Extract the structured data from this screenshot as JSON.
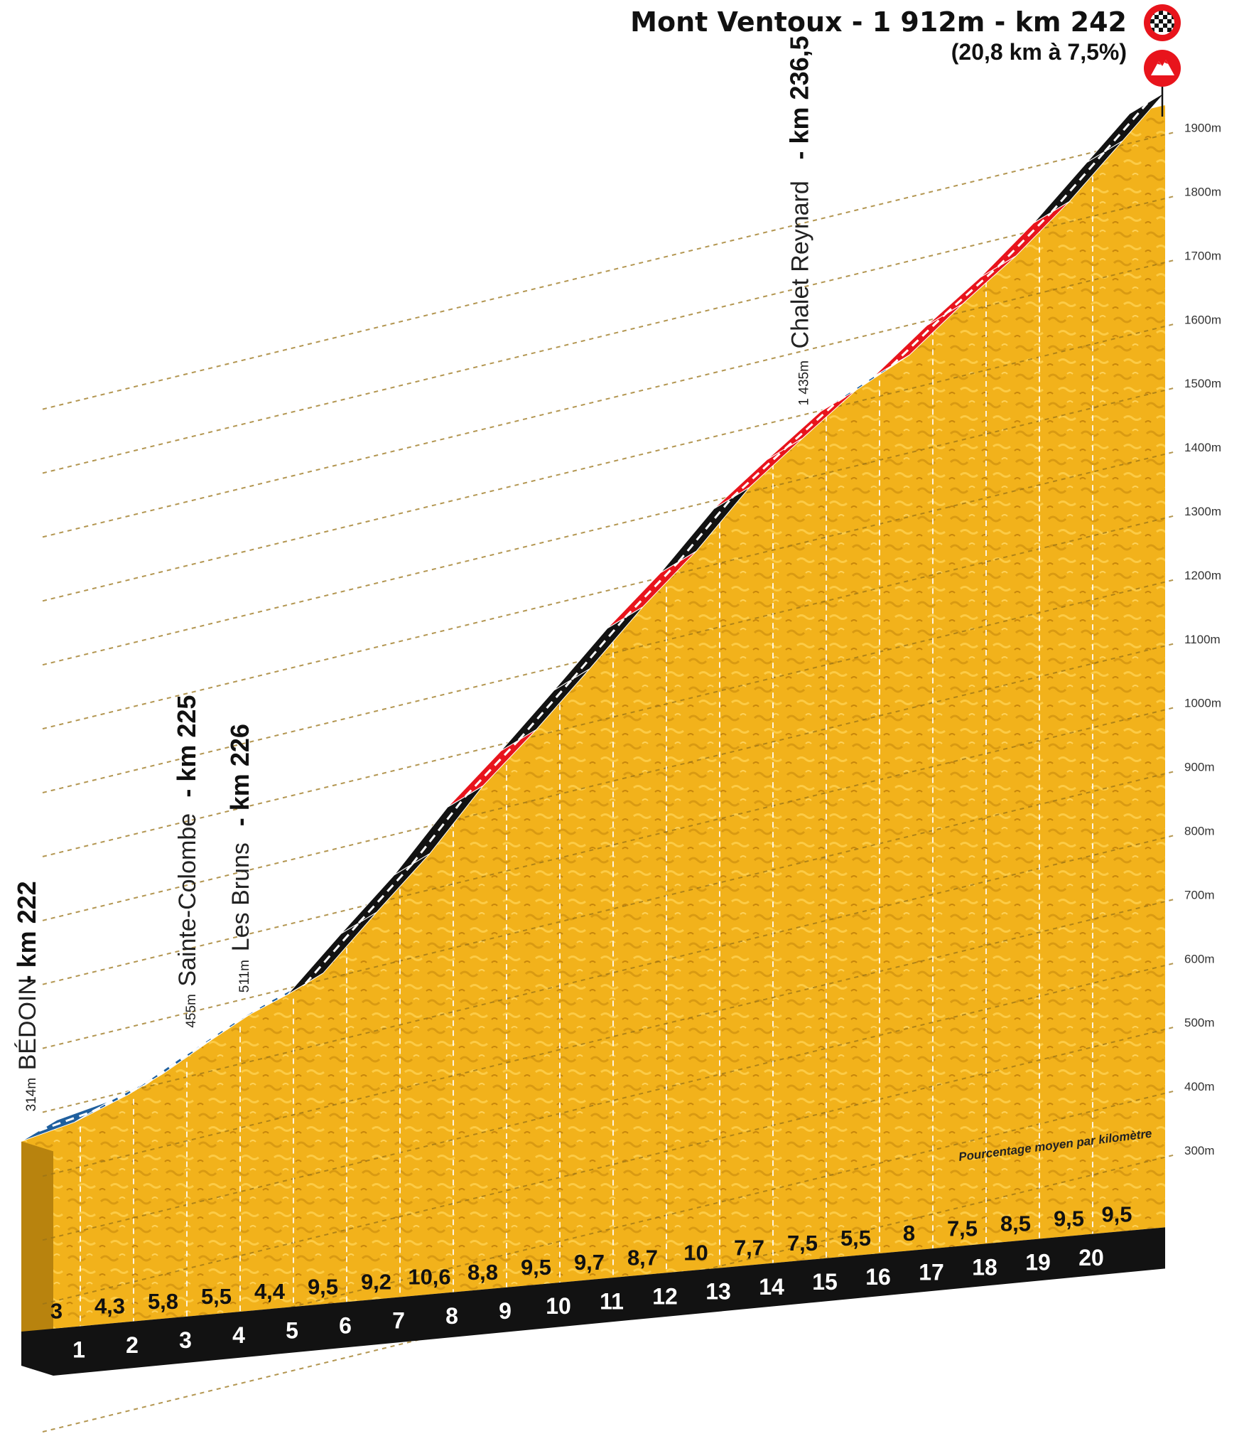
{
  "chart_data": {
    "type": "area",
    "title": "Mont Ventoux - 1 912m - km 242",
    "subtitle": "(20,8 km à 7,5%)",
    "legend_label": "Pourcentage moyen par kilomètre",
    "y_unit": "m",
    "ylim": [
      140,
      1930
    ],
    "y_ticks": [
      "300m",
      "400m",
      "500m",
      "600m",
      "700m",
      "800m",
      "900m",
      "1000m",
      "1100m",
      "1200m",
      "1300m",
      "1400m",
      "1500m",
      "1600m",
      "1700m",
      "1800m",
      "1900m"
    ],
    "x_km_labels": [
      "1",
      "2",
      "3",
      "4",
      "5",
      "6",
      "7",
      "8",
      "9",
      "10",
      "11",
      "12",
      "13",
      "14",
      "15",
      "16",
      "17",
      "18",
      "19",
      "20"
    ],
    "gradients": [
      "3",
      "4,3",
      "5,8",
      "5,5",
      "4,4",
      "9,5",
      "9,2",
      "10,6",
      "8,8",
      "9,5",
      "9,7",
      "8,7",
      "10",
      "7,7",
      "7,5",
      "5,5",
      "8",
      "7,5",
      "8,5",
      "9,5",
      "9,5"
    ],
    "gradient_values": [
      3,
      4.3,
      5.8,
      5.5,
      4.4,
      9.5,
      9.2,
      10.6,
      8.8,
      9.5,
      9.7,
      8.7,
      10,
      7.7,
      7.5,
      5.5,
      8,
      7.5,
      8.5,
      9.5,
      9.5
    ],
    "segment_colors": [
      "blue",
      "blue",
      "blue",
      "blue",
      "blue",
      "black",
      "black",
      "black",
      "red",
      "black",
      "black",
      "red",
      "black",
      "red",
      "red",
      "blue",
      "red",
      "red",
      "red",
      "black",
      "black"
    ],
    "colors": {
      "blue": "#1f5f9e",
      "red": "#e8141c",
      "black": "#121212",
      "terrain": "#f2b21b",
      "terrain_dark": "#c98a10",
      "side": "#b8830e",
      "base": "#121212"
    },
    "start_elevation_m": 314,
    "segment_length_km": [
      1,
      1,
      1,
      1,
      1,
      1,
      1,
      1,
      1,
      1,
      1,
      1,
      1,
      1,
      1,
      1,
      1,
      1,
      1,
      1,
      0.8
    ],
    "waypoints": [
      {
        "alt": "314m",
        "name": "BÉDOIN",
        "km": "- km 222",
        "dist_km": 0
      },
      {
        "alt": "455m",
        "name": "Sainte-Colombe",
        "km": "- km 225",
        "dist_km": 3
      },
      {
        "alt": "511m",
        "name": "Les Bruns",
        "km": "- km 226",
        "dist_km": 4
      },
      {
        "alt": "1 435m",
        "name": "Chalet Reynard",
        "km": "- km 236,5",
        "dist_km": 14.5
      }
    ],
    "icons": [
      "finish-flag-icon",
      "summit-icon"
    ]
  }
}
